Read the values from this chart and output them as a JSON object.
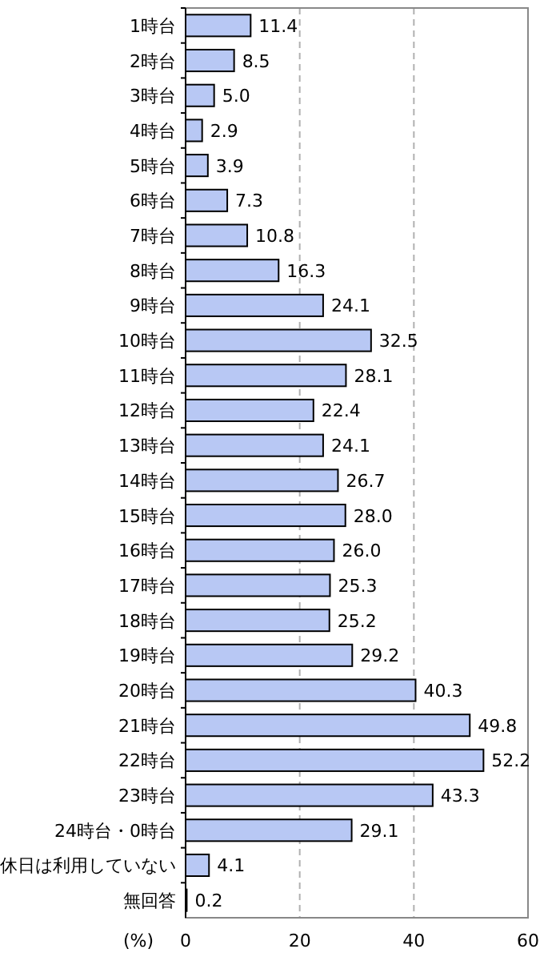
{
  "chart_data": {
    "type": "bar",
    "orientation": "horizontal",
    "xlabel": "(%)",
    "categories": [
      "1時台",
      "2時台",
      "3時台",
      "4時台",
      "5時台",
      "6時台",
      "7時台",
      "8時台",
      "9時台",
      "10時台",
      "11時台",
      "12時台",
      "13時台",
      "14時台",
      "15時台",
      "16時台",
      "17時台",
      "18時台",
      "19時台",
      "20時台",
      "21時台",
      "22時台",
      "23時台",
      "24時台・0時台",
      "休日は利用していない",
      "無回答"
    ],
    "values": [
      11.4,
      8.5,
      5.0,
      2.9,
      3.9,
      7.3,
      10.8,
      16.3,
      24.1,
      32.5,
      28.1,
      22.4,
      24.1,
      26.7,
      28.0,
      26.0,
      25.3,
      25.2,
      29.2,
      40.3,
      49.8,
      52.2,
      43.3,
      29.1,
      4.1,
      0.2
    ],
    "value_labels": [
      "11.4",
      "8.5",
      "5.0",
      "2.9",
      "3.9",
      "7.3",
      "10.8",
      "16.3",
      "24.1",
      "32.5",
      "28.1",
      "22.4",
      "24.1",
      "26.7",
      "28.0",
      "26.0",
      "25.3",
      "25.2",
      "29.2",
      "40.3",
      "49.8",
      "52.2",
      "43.3",
      "29.1",
      "4.1",
      "0.2"
    ],
    "color": "#b8c8f4",
    "xlim": [
      0,
      60
    ],
    "xticks": [
      0,
      20,
      40,
      60
    ],
    "grid": "x"
  }
}
